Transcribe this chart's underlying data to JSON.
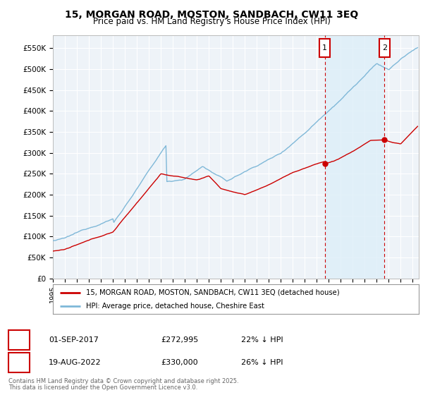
{
  "title": "15, MORGAN ROAD, MOSTON, SANDBACH, CW11 3EQ",
  "subtitle": "Price paid vs. HM Land Registry's House Price Index (HPI)",
  "ylabel_ticks": [
    "£0",
    "£50K",
    "£100K",
    "£150K",
    "£200K",
    "£250K",
    "£300K",
    "£350K",
    "£400K",
    "£450K",
    "£500K",
    "£550K"
  ],
  "ytick_values": [
    0,
    50000,
    100000,
    150000,
    200000,
    250000,
    300000,
    350000,
    400000,
    450000,
    500000,
    550000
  ],
  "ylim": [
    0,
    580000
  ],
  "xlim_start": 1995.0,
  "xlim_end": 2025.5,
  "hpi_color": "#7fb8d8",
  "hpi_shade_color": "#ddeef8",
  "price_color": "#cc0000",
  "marker1_x": 2017.667,
  "marker1_y": 272995,
  "marker1_label": "1",
  "marker1_date": "01-SEP-2017",
  "marker1_price": "£272,995",
  "marker1_hpi": "22% ↓ HPI",
  "marker2_x": 2022.633,
  "marker2_y": 330000,
  "marker2_label": "2",
  "marker2_date": "19-AUG-2022",
  "marker2_price": "£330,000",
  "marker2_hpi": "26% ↓ HPI",
  "legend_line1": "15, MORGAN ROAD, MOSTON, SANDBACH, CW11 3EQ (detached house)",
  "legend_line2": "HPI: Average price, detached house, Cheshire East",
  "footer1": "Contains HM Land Registry data © Crown copyright and database right 2025.",
  "footer2": "This data is licensed under the Open Government Licence v3.0.",
  "background_color": "#ffffff",
  "grid_color": "#cccccc",
  "box_color": "#cc0000",
  "plot_bg": "#f0f4f8"
}
